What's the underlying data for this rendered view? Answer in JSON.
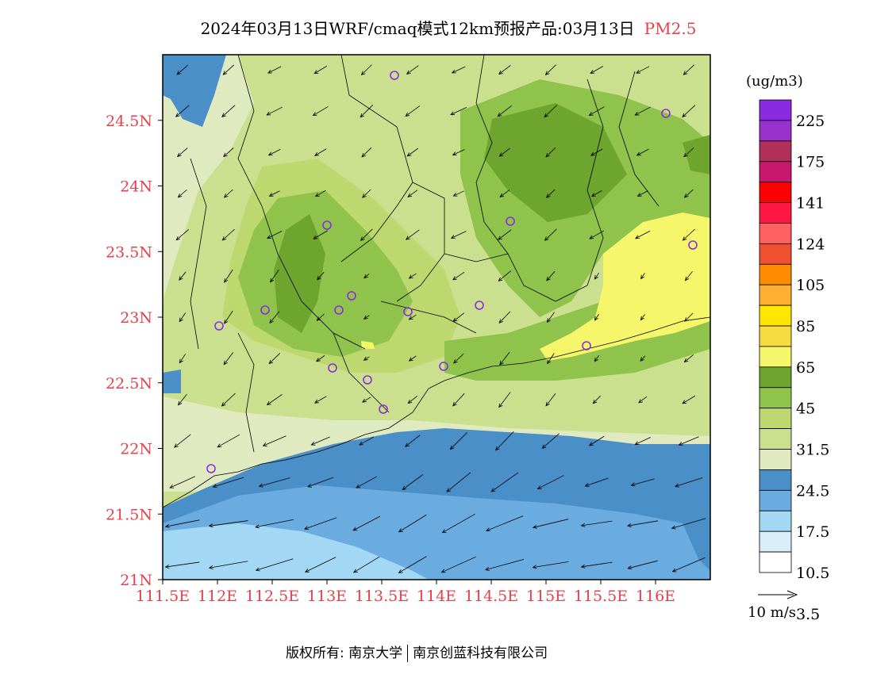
{
  "header": {
    "title": "2024年03月13日WRF/cmaq模式12km预报产品:03月13日",
    "pollutant": "PM2.5"
  },
  "map": {
    "lon_ticks": [
      "111.5E",
      "112E",
      "112.5E",
      "113E",
      "113.5E",
      "114E",
      "114.5E",
      "115E",
      "115.5E",
      "116E"
    ],
    "lat_ticks": [
      "24.5N",
      "24N",
      "23.5N",
      "23N",
      "22.5N",
      "22N",
      "21.5N",
      "21N"
    ],
    "lon_range": [
      111.5,
      116.5
    ],
    "lat_range": [
      21.0,
      25.0
    ]
  },
  "legend": {
    "unit": "(ug/m3)",
    "labels": [
      "225",
      "175",
      "141",
      "124",
      "105",
      "85",
      "65",
      "45",
      "31.5",
      "24.5",
      "17.5",
      "10.5",
      "3.5"
    ],
    "colors": [
      "#8a2be2",
      "#9932cc",
      "#b0305a",
      "#c8186e",
      "#ff0000",
      "#ff1744",
      "#ff6060",
      "#f05030",
      "#ff8c00",
      "#ffb030",
      "#ffe600",
      "#f7dc40",
      "#f6f66a",
      "#6da52f",
      "#8fc34b",
      "#bcd86f",
      "#cbe08f",
      "#dfeac0",
      "#4a8fc8",
      "#6aacdf",
      "#a3d8f5",
      "#d8eef8",
      "#ffffff"
    ]
  },
  "wind": {
    "scale_label": "10 m/s"
  },
  "footer": {
    "copyright_left": "版权所有: 南京大学",
    "copyright_right": "南京创蓝科技有限公司"
  }
}
